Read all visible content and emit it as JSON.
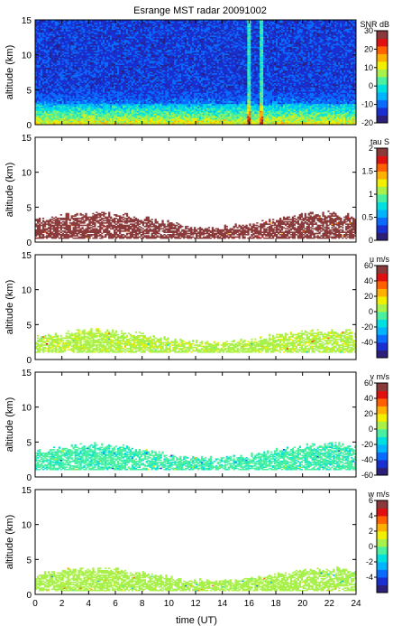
{
  "figure": {
    "title": "Esrange MST radar 20091002",
    "xlabel": "time (UT)"
  },
  "chart_data": [
    {
      "type": "heatmap",
      "ylabel": "altitude (km)",
      "ylim": [
        0,
        15
      ],
      "yticks": [
        0,
        5,
        10,
        15
      ],
      "xlim": [
        0,
        24
      ],
      "xticks": [
        0,
        2,
        4,
        6,
        8,
        10,
        12,
        14,
        16,
        18,
        20,
        22,
        24
      ],
      "colorbar": {
        "label": "SNR dB",
        "range": [
          -20,
          30
        ],
        "ticks": [
          -20,
          -10,
          0,
          10,
          20,
          30
        ]
      },
      "field": "snr",
      "features": {
        "background_level_db": -13,
        "strong_layer_km": [
          0.5,
          3.0
        ],
        "vertical_streaks_ut": [
          16.0,
          16.9
        ]
      }
    },
    {
      "type": "heatmap",
      "ylabel": "altitude (km)",
      "ylim": [
        0,
        15
      ],
      "yticks": [
        0,
        5,
        10,
        15
      ],
      "xlim": [
        0,
        24
      ],
      "xticks": [
        0,
        2,
        4,
        6,
        8,
        10,
        12,
        14,
        16,
        18,
        20,
        22,
        24
      ],
      "colorbar": {
        "label": "tau S",
        "range": [
          0,
          2
        ],
        "ticks": [
          0,
          0.5,
          1,
          1.5,
          2
        ]
      },
      "field": "tau",
      "features": {
        "typical_value": 2,
        "echo_layer_km": [
          0.5,
          4.5
        ]
      }
    },
    {
      "type": "heatmap",
      "ylabel": "altitude (km)",
      "ylim": [
        0,
        15
      ],
      "yticks": [
        0,
        5,
        10,
        15
      ],
      "xlim": [
        0,
        24
      ],
      "xticks": [
        0,
        2,
        4,
        6,
        8,
        10,
        12,
        14,
        16,
        18,
        20,
        22,
        24
      ],
      "colorbar": {
        "label": "u m/s",
        "range": [
          -60,
          60
        ],
        "ticks": [
          -40,
          -20,
          0,
          20,
          40,
          60
        ]
      },
      "field": "u",
      "features": {
        "typical_value": 8,
        "echo_layer_km": [
          1.0,
          4.5
        ]
      }
    },
    {
      "type": "heatmap",
      "ylabel": "altitude (km)",
      "ylim": [
        0,
        15
      ],
      "yticks": [
        0,
        5,
        10,
        15
      ],
      "xlim": [
        0,
        24
      ],
      "xticks": [
        0,
        2,
        4,
        6,
        8,
        10,
        12,
        14,
        16,
        18,
        20,
        22,
        24
      ],
      "colorbar": {
        "label": "v m/s",
        "range": [
          -60,
          60
        ],
        "ticks": [
          -60,
          -40,
          -20,
          0,
          20,
          40,
          60
        ]
      },
      "field": "v",
      "features": {
        "typical_value": -8,
        "echo_layer_km": [
          1.0,
          5.0
        ]
      }
    },
    {
      "type": "heatmap",
      "ylabel": "altitude (km)",
      "ylim": [
        0,
        15
      ],
      "yticks": [
        0,
        5,
        10,
        15
      ],
      "xlim": [
        0,
        24
      ],
      "xticks": [
        0,
        2,
        4,
        6,
        8,
        10,
        12,
        14,
        16,
        18,
        20,
        22,
        24
      ],
      "colorbar": {
        "label": "w m/s",
        "range": [
          -6,
          6
        ],
        "ticks": [
          -4,
          -2,
          0,
          2,
          4,
          6
        ]
      },
      "field": "w",
      "features": {
        "typical_value": 0.3,
        "echo_layer_km": [
          0.5,
          4.0
        ]
      }
    }
  ],
  "colors": {
    "colormap": [
      "#2b1f7a",
      "#1a2fd0",
      "#0a6cff",
      "#00b4ff",
      "#00e0e0",
      "#4af0a0",
      "#a8f04a",
      "#f0f000",
      "#ffb000",
      "#ff6000",
      "#e01010",
      "#8a3a3a"
    ]
  }
}
